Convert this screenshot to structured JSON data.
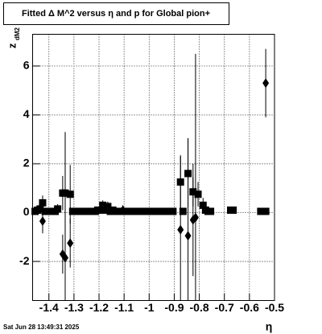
{
  "chart_data": {
    "type": "scatter",
    "title": "Fitted Δ M^2 versus η and p for Global pion+",
    "x_label": "η",
    "y_label": "z",
    "y_label_sub": "dM2",
    "timestamp": "Sat Jun 28 13:49:31 2025",
    "xlim": [
      -1.465,
      -0.5
    ],
    "ylim": [
      -3.6,
      7.3
    ],
    "xticks": [
      -1.4,
      -1.3,
      -1.2,
      -1.1,
      -1,
      -0.9,
      -0.8,
      -0.7,
      -0.6,
      -0.5
    ],
    "yticks": [
      -2,
      0,
      2,
      4,
      6
    ],
    "grid": true,
    "series": [
      {
        "color": "#000000",
        "marker": "square",
        "x": [
          -1.455,
          -1.445,
          -1.435,
          -1.425,
          -1.415,
          -1.405,
          -1.395,
          -1.385,
          -1.375,
          -1.365,
          -1.345,
          -1.335,
          -1.315,
          -1.305,
          -1.295,
          -1.285,
          -1.275,
          -1.265,
          -1.255,
          -1.245,
          -1.235,
          -1.225,
          -1.215,
          -1.205,
          -1.195,
          -1.185,
          -1.175,
          -1.165,
          -1.155,
          -1.145,
          -1.135,
          -1.125,
          -1.115,
          -1.105,
          -1.095,
          -1.085,
          -1.075,
          -1.065,
          -1.055,
          -1.045,
          -1.035,
          -1.025,
          -1.015,
          -1.005,
          -0.995,
          -0.985,
          -0.975,
          -0.965,
          -0.955,
          -0.945,
          -0.935,
          -0.925,
          -0.915,
          -0.905,
          -0.875,
          -0.865,
          -0.845,
          -0.825,
          -0.805,
          -0.785,
          -0.775,
          -0.765,
          -0.755,
          -0.675,
          -0.665,
          -0.555,
          -0.545,
          -0.535
        ],
        "values": [
          0.05,
          0.1,
          0.15,
          0.4,
          0.05,
          0.05,
          0.05,
          0.05,
          0.05,
          0.15,
          0.8,
          0.8,
          0.75,
          0.05,
          0.05,
          0.05,
          0.05,
          0.05,
          0.05,
          0.05,
          0.05,
          0.05,
          0.05,
          0.1,
          0.1,
          0.3,
          0.1,
          0.25,
          0.05,
          0.1,
          0.05,
          0.05,
          0.05,
          0.05,
          0.05,
          0.05,
          0.05,
          0.05,
          0.05,
          0.05,
          0.05,
          0.05,
          0.05,
          0.05,
          0.05,
          0.05,
          0.05,
          0.05,
          0.05,
          0.05,
          0.05,
          0.05,
          0.05,
          0.05,
          1.25,
          0.05,
          1.6,
          0.85,
          0.75,
          0.3,
          0.1,
          0.05,
          0.05,
          0.1,
          0.1,
          0.05,
          0.05,
          0.05
        ],
        "errors": [
          0.1,
          0.1,
          0.2,
          0.3,
          0.1,
          0.1,
          0.1,
          0.1,
          0.1,
          0.2,
          0.7,
          2.5,
          1.2,
          0.1,
          0.1,
          0.1,
          0.1,
          0.1,
          0.1,
          0.1,
          0.1,
          0.1,
          0.1,
          0.1,
          0.1,
          0.2,
          0.1,
          0.2,
          0.1,
          0.1,
          0.1,
          0.1,
          0.1,
          0.1,
          0.1,
          0.1,
          0.1,
          0.1,
          0.1,
          0.1,
          0.1,
          0.1,
          0.1,
          0.1,
          0.1,
          0.1,
          0.1,
          0.1,
          0.1,
          0.1,
          0.1,
          0.1,
          0.1,
          0.1,
          1.1,
          0.1,
          1.4,
          0.6,
          0.5,
          0.3,
          0.1,
          0.1,
          0.1,
          0.1,
          0.1,
          0.1,
          0.1,
          0.1
        ]
      },
      {
        "color": "#000000",
        "marker": "diamond",
        "x": [
          -1.425,
          -1.345,
          -1.335,
          -1.315,
          -1.105,
          -0.875,
          -0.845,
          -0.825,
          -0.815,
          -0.535
        ],
        "values": [
          -0.35,
          -1.7,
          -1.85,
          -1.25,
          0.1,
          -0.7,
          -0.95,
          -0.3,
          -0.2,
          5.3
        ],
        "errors": [
          0.5,
          0.8,
          5.1,
          1.0,
          0.2,
          3.0,
          4.0,
          2.3,
          6.7,
          1.4
        ]
      }
    ]
  }
}
